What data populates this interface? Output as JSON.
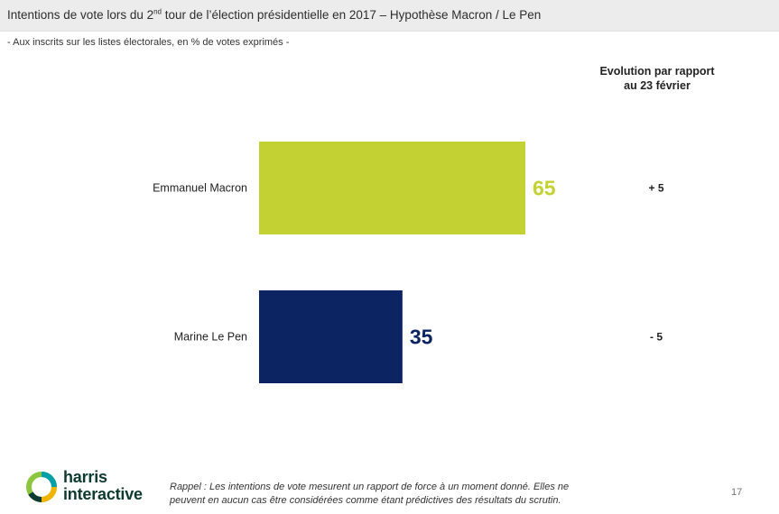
{
  "header": {
    "title_prefix": "Intentions de vote lors du 2",
    "title_sup": "nd",
    "title_suffix": " tour de l’élection présidentielle en 2017 – Hypothèse Macron / Le Pen"
  },
  "subtitle": "- Aux inscrits sur les listes électorales, en % de votes exprimés -",
  "evolution_header": {
    "line1": "Evolution par rapport",
    "line2": "au 23 février"
  },
  "chart_data": {
    "type": "bar",
    "orientation": "horizontal",
    "categories": [
      "Emmanuel Macron",
      "Marine Le Pen"
    ],
    "values": [
      65,
      35
    ],
    "value_labels": [
      "65",
      "35"
    ],
    "evolution": [
      "+ 5",
      "- 5"
    ],
    "colors": [
      "#c3d232",
      "#0c2461"
    ],
    "xlim": [
      0,
      100
    ],
    "grid": false
  },
  "footer": {
    "note_line1": "Rappel : Les intentions de vote mesurent un rapport de force à un moment donné. Elles ne",
    "note_line2": "peuvent en aucun cas être considérées comme étant prédictives des résultats du scrutin.",
    "page_number": "17",
    "logo_line1": "harris",
    "logo_line2": "interactive"
  }
}
